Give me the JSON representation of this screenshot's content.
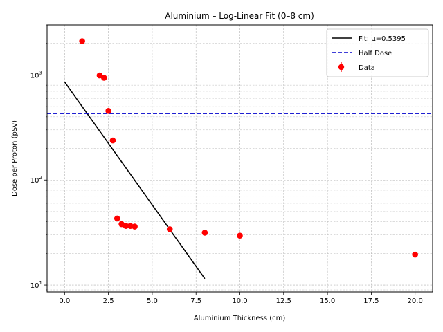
{
  "chart_data": {
    "type": "scatter",
    "title": "Aluminium – Log-Linear Fit (0–8 cm)",
    "xlabel": "Aluminium Thickness (cm)",
    "ylabel": "Dose per Proton (pSv)",
    "xlim": [
      -1.0,
      21.0
    ],
    "ylim": [
      8.6,
      3000
    ],
    "yscale": "log",
    "grid": true,
    "legend_position": "top-right",
    "x_ticks": [
      0.0,
      2.5,
      5.0,
      7.5,
      10.0,
      12.5,
      15.0,
      17.5,
      20.0
    ],
    "x_tick_labels": [
      "0.0",
      "2.5",
      "5.0",
      "7.5",
      "10.0",
      "12.5",
      "15.0",
      "17.5",
      "20.0"
    ],
    "y_major_ticks": [
      10,
      100,
      1000
    ],
    "y_tick_labels": [
      {
        "base": "10",
        "exp": "1"
      },
      {
        "base": "10",
        "exp": "2"
      },
      {
        "base": "10",
        "exp": "3"
      }
    ],
    "series": [
      {
        "name": "Fit: μ=0.5395",
        "kind": "line",
        "color": "#000000",
        "x": [
          0,
          8
        ],
        "y": [
          860,
          11.5
        ]
      },
      {
        "name": "Half Dose",
        "kind": "hline",
        "color": "#0000cc",
        "y": 430
      },
      {
        "name": "Data",
        "kind": "points",
        "color": "#ff0000",
        "x": [
          1.0,
          2.0,
          2.25,
          2.5,
          2.75,
          3.0,
          3.25,
          3.5,
          3.75,
          4.0,
          6.0,
          8.0,
          10.0,
          20.0
        ],
        "y": [
          2100,
          990,
          940,
          455,
          238,
          43,
          38,
          36.5,
          36.5,
          36,
          34,
          31.5,
          29.5,
          19.5
        ]
      }
    ]
  }
}
